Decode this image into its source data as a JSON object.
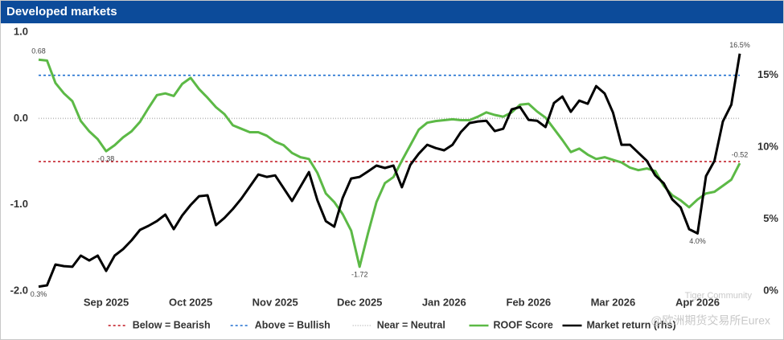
{
  "chart_data": {
    "type": "line",
    "title": "Developed markets",
    "categories": [
      null,
      null,
      null,
      null,
      null,
      null,
      null,
      null,
      "Sep 2025",
      null,
      null,
      null,
      null,
      null,
      null,
      null,
      null,
      null,
      "Oct 2025",
      null,
      null,
      null,
      null,
      null,
      null,
      null,
      null,
      null,
      "Nov 2025",
      null,
      null,
      null,
      null,
      null,
      null,
      null,
      null,
      null,
      "Dec 2025",
      null,
      null,
      null,
      null,
      null,
      null,
      null,
      null,
      null,
      "Jan 2026",
      null,
      null,
      null,
      null,
      null,
      null,
      null,
      null,
      null,
      "Feb 2026",
      null,
      null,
      null,
      null,
      null,
      null,
      null,
      null,
      null,
      "Mar 2026",
      null,
      null,
      null,
      null,
      null,
      null,
      null,
      null,
      null,
      "Apr 2026",
      null,
      null,
      null,
      null,
      null
    ],
    "series": [
      {
        "name": "ROOF Score",
        "color": "#5cb946",
        "values": [
          0.68,
          0.67,
          0.41,
          0.29,
          0.2,
          -0.03,
          -0.15,
          -0.24,
          -0.38,
          -0.31,
          -0.22,
          -0.15,
          -0.04,
          0.12,
          0.27,
          0.29,
          0.26,
          0.4,
          0.47,
          0.34,
          0.24,
          0.13,
          0.05,
          -0.08,
          -0.12,
          -0.16,
          -0.16,
          -0.2,
          -0.27,
          -0.31,
          -0.4,
          -0.45,
          -0.47,
          -0.63,
          -0.87,
          -0.97,
          -1.11,
          -1.3,
          -1.72,
          -1.33,
          -0.97,
          -0.75,
          -0.68,
          -0.49,
          -0.31,
          -0.13,
          -0.05,
          -0.03,
          -0.02,
          -0.01,
          -0.02,
          -0.02,
          0.02,
          0.07,
          0.04,
          0.02,
          0.07,
          0.16,
          0.17,
          0.08,
          0.01,
          -0.12,
          -0.25,
          -0.39,
          -0.35,
          -0.42,
          -0.47,
          -0.45,
          -0.48,
          -0.51,
          -0.57,
          -0.6,
          -0.58,
          -0.61,
          -0.78,
          -0.89,
          -0.95,
          -1.03,
          -0.94,
          -0.87,
          -0.85,
          -0.78,
          -0.71,
          -0.52
        ],
        "value_labels": [
          "0.68",
          null,
          null,
          null,
          null,
          null,
          null,
          null,
          "-0.38",
          null,
          null,
          null,
          null,
          null,
          null,
          null,
          null,
          null,
          null,
          null,
          null,
          null,
          null,
          null,
          null,
          null,
          null,
          null,
          null,
          null,
          null,
          null,
          null,
          null,
          null,
          null,
          null,
          null,
          "-1.72",
          null,
          null,
          null,
          null,
          null,
          null,
          null,
          null,
          null,
          null,
          null,
          null,
          null,
          null,
          null,
          null,
          null,
          null,
          null,
          null,
          null,
          null,
          null,
          null,
          null,
          null,
          null,
          null,
          null,
          null,
          null,
          null,
          null,
          null,
          null,
          null,
          null,
          null,
          null,
          null,
          null,
          null,
          null,
          null,
          "-0.52"
        ]
      },
      {
        "name": "Market return (rhs)",
        "color": "#000000",
        "axis": "y2",
        "values": [
          0.3,
          0.39,
          1.84,
          1.73,
          1.68,
          2.46,
          2.12,
          2.46,
          1.4,
          2.46,
          2.91,
          3.52,
          4.25,
          4.53,
          4.86,
          5.31,
          4.3,
          5.25,
          5.98,
          6.59,
          6.65,
          4.58,
          5.08,
          5.7,
          6.42,
          7.26,
          8.1,
          7.93,
          8.04,
          7.15,
          6.26,
          7.26,
          8.27,
          6.31,
          4.86,
          4.47,
          6.48,
          7.82,
          7.93,
          8.32,
          8.72,
          8.55,
          8.72,
          7.21,
          8.77,
          9.55,
          10.17,
          9.94,
          9.78,
          10.17,
          11.06,
          11.68,
          11.79,
          11.84,
          11.12,
          11.28,
          12.63,
          12.79,
          11.9,
          11.84,
          11.4,
          13.07,
          13.52,
          12.46,
          13.24,
          13.02,
          14.25,
          13.74,
          12.4,
          10.17,
          10.17,
          9.61,
          9.05,
          8.04,
          7.49,
          6.37,
          5.81,
          4.3,
          4.0,
          7.99,
          9.05,
          11.79,
          12.96,
          16.5
        ],
        "value_labels": [
          "0.3%",
          null,
          null,
          null,
          null,
          null,
          null,
          null,
          null,
          null,
          null,
          null,
          null,
          null,
          null,
          null,
          null,
          null,
          null,
          null,
          null,
          null,
          null,
          null,
          null,
          null,
          null,
          null,
          null,
          null,
          null,
          null,
          null,
          null,
          null,
          null,
          null,
          null,
          null,
          null,
          null,
          null,
          null,
          null,
          null,
          null,
          null,
          null,
          null,
          null,
          null,
          null,
          null,
          null,
          null,
          null,
          null,
          null,
          null,
          null,
          null,
          null,
          null,
          null,
          null,
          null,
          null,
          null,
          null,
          null,
          null,
          null,
          null,
          null,
          null,
          null,
          null,
          null,
          "4.0%",
          null,
          null,
          null,
          null,
          "16.5%"
        ]
      }
    ],
    "reference_lines": [
      {
        "name": "Below = Bearish",
        "value": -0.5,
        "color": "#c0141e",
        "dash": "3,3"
      },
      {
        "name": "Above = Bullish",
        "value": 0.5,
        "color": "#1f6fd0",
        "dash": "3,3"
      },
      {
        "name": "Near = Neutral",
        "value": 0,
        "color": "#bbbbbb",
        "dash": "1,2"
      }
    ],
    "ylim": [
      -2,
      1
    ],
    "yticks": [
      {
        "value": 1,
        "label": "1.0"
      },
      {
        "value": 0,
        "label": "0.0"
      },
      {
        "value": -1,
        "label": "-1.0"
      },
      {
        "value": -2,
        "label": "-2.0"
      }
    ],
    "y2lim": [
      0,
      18
    ],
    "y2ticks": [
      {
        "value": 0,
        "label": "0%"
      },
      {
        "value": 5,
        "label": "5%"
      },
      {
        "value": 10,
        "label": "10%"
      },
      {
        "value": 15,
        "label": "15%"
      }
    ],
    "legend": "bottom",
    "watermark": [
      "Tiger Community",
      "@欧洲期货交易所Eurex"
    ]
  }
}
